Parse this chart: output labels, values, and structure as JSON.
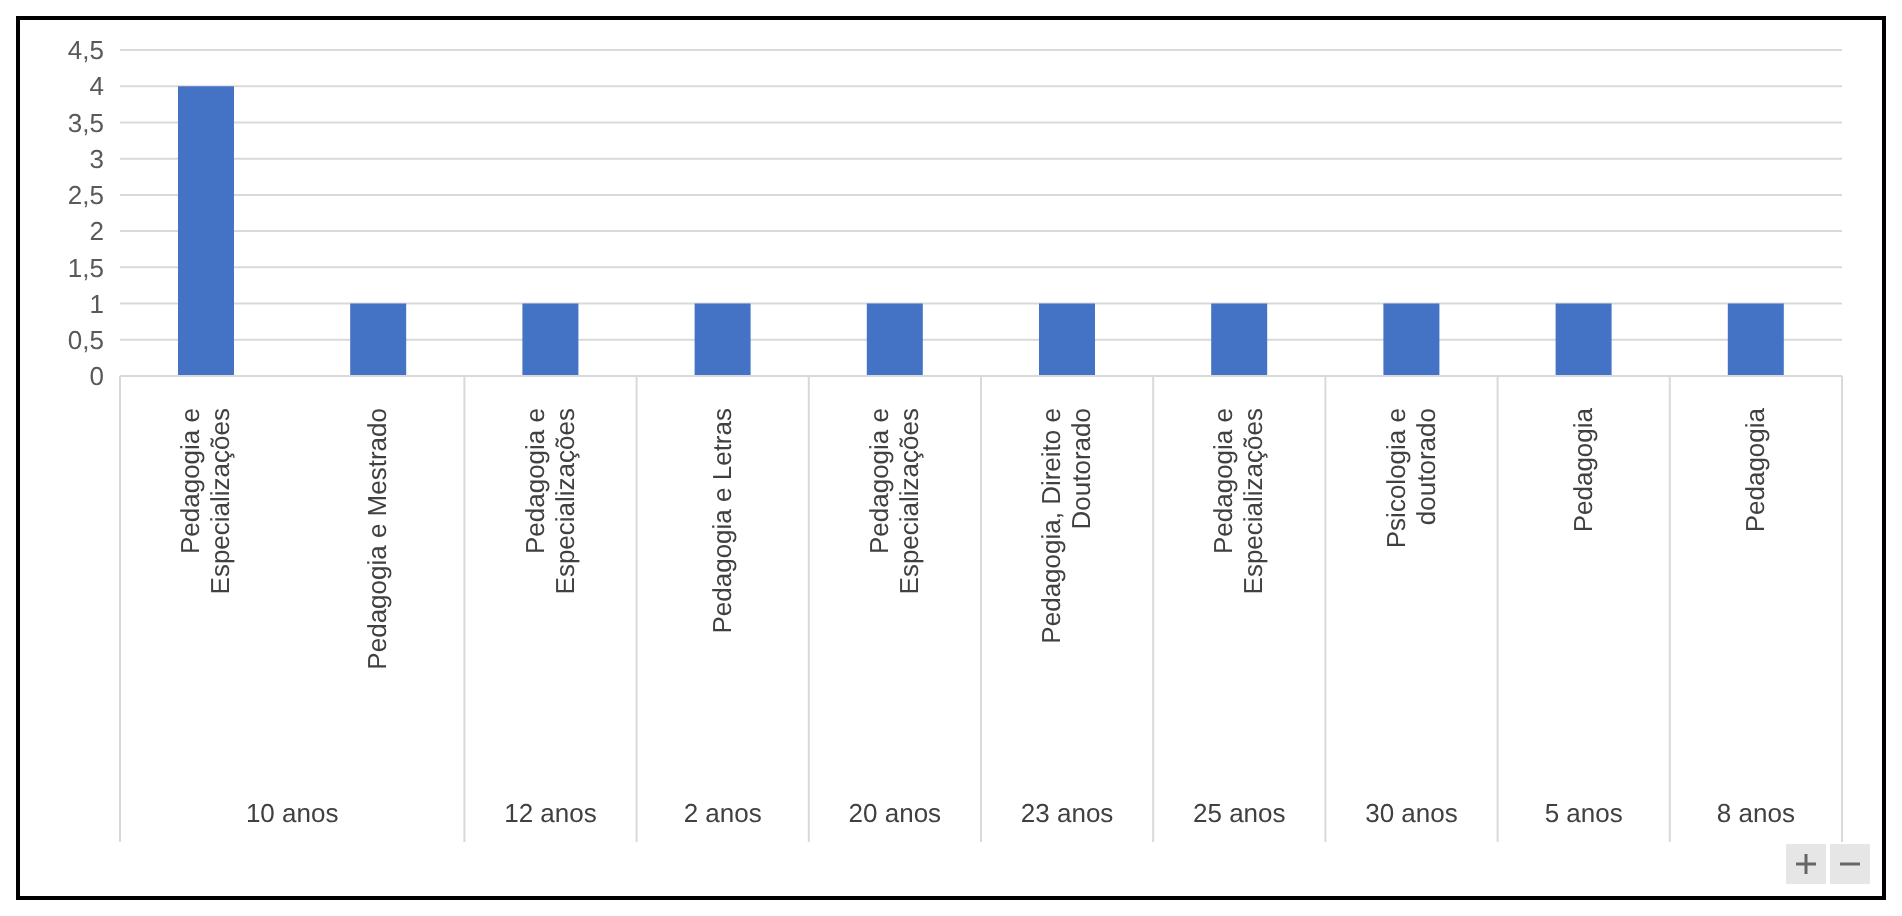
{
  "chart_data": {
    "type": "bar",
    "categories": [
      "Pedagogia e Especializações",
      "Pedagogia e Mestrado",
      "Pedagogia e Especializações",
      "Pedagogia e Letras",
      "Pedagogia e Especializações",
      "Pedagogia, Direito e Doutorado",
      "Pedagogia e Especializações",
      "Psicologia e doutorado",
      "Pedagogia",
      "Pedagogia"
    ],
    "values": [
      4,
      1,
      1,
      1,
      1,
      1,
      1,
      1,
      1,
      1
    ],
    "color": "#4472c4",
    "ylim": [
      0,
      4.5
    ],
    "yticks": [
      0,
      {
        "value": 0.5,
        "label": "0,5"
      },
      1,
      {
        "value": 1.5,
        "label": "1,5"
      },
      2,
      {
        "value": 2.5,
        "label": "2,5"
      },
      3,
      {
        "value": 3.5,
        "label": "3,5"
      },
      4,
      {
        "value": 4.5,
        "label": "4,5"
      }
    ],
    "grid": "y",
    "annotations": [
      "10 anos",
      "12 anos",
      "2 anos",
      "20 anos",
      "23 anos",
      "25 anos",
      "30 anos",
      "5 anos",
      "8 anos"
    ]
  }
}
